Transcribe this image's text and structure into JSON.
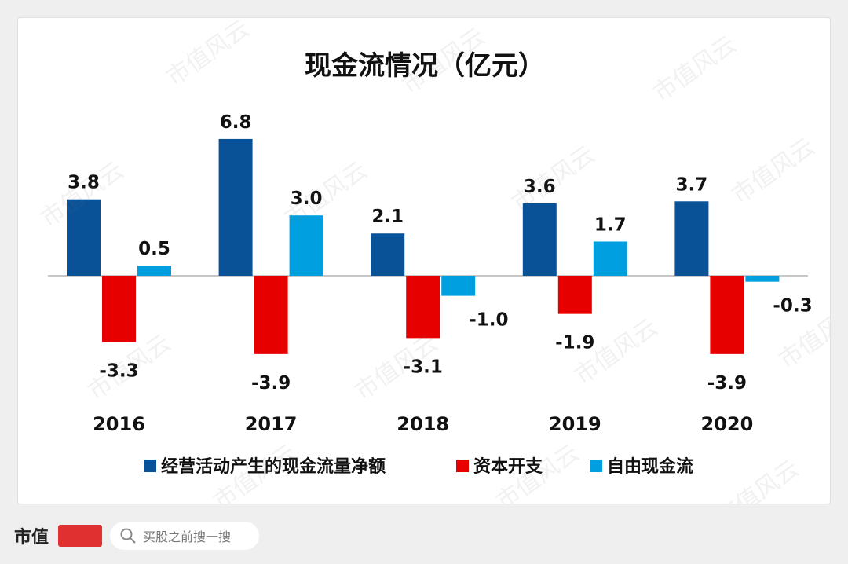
{
  "footer": {
    "brand_name": "市值",
    "search_placeholder": "买股之前搜一搜"
  },
  "watermark_text": "市值风云",
  "colors": {
    "operating": "#0a5298",
    "capex": "#e60000",
    "fcf": "#00a0e0",
    "axis": "#c8c8c8"
  },
  "chart_data": {
    "type": "bar",
    "title": "现金流情况（亿元）",
    "categories": [
      "2016",
      "2017",
      "2018",
      "2019",
      "2020"
    ],
    "series": [
      {
        "name": "经营活动产生的现金流量净额",
        "values": [
          3.8,
          6.8,
          2.1,
          3.6,
          3.7
        ],
        "labels": [
          "3.8",
          "6.8",
          "2.1",
          "3.6",
          "3.7"
        ]
      },
      {
        "name": "资本开支",
        "values": [
          -3.3,
          -3.9,
          -3.1,
          -1.9,
          -3.9
        ],
        "labels": [
          "-3.3",
          "-3.9",
          "-3.1",
          "-1.9",
          "-3.9"
        ]
      },
      {
        "name": "自由现金流",
        "values": [
          0.5,
          3.0,
          -1.0,
          1.7,
          -0.3
        ],
        "labels": [
          "0.5",
          "3.0",
          "-1.0",
          "1.7",
          "-0.3"
        ]
      }
    ],
    "ylim": [
      -4,
      7
    ],
    "grid": false,
    "legend_position": "bottom"
  }
}
